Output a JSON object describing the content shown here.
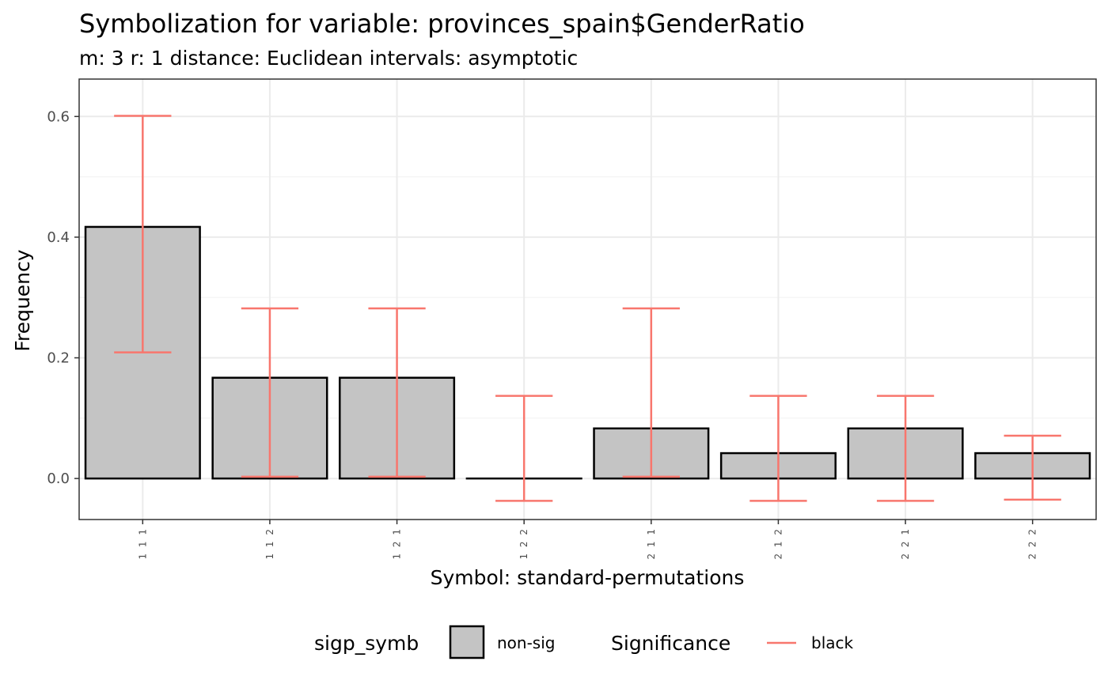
{
  "chart_data": {
    "type": "bar",
    "title": "Symbolization for variable: provinces_spain$GenderRatio",
    "subtitle": "m: 3  r:  1  distance:  Euclidean  intervals:  asymptotic",
    "xlabel": "Symbol: standard-permutations",
    "ylabel": "Frequency",
    "categories": [
      "1 1 1",
      "1 1 2",
      "1 2 1",
      "1 2 2",
      "2 1 1",
      "2 1 2",
      "2 2 1",
      "2 2 2"
    ],
    "values": [
      0.417,
      0.167,
      0.167,
      0.0,
      0.083,
      0.042,
      0.083,
      0.042
    ],
    "error_lower": [
      0.209,
      0.003,
      0.003,
      -0.037,
      0.003,
      -0.037,
      -0.037,
      -0.035
    ],
    "error_upper": [
      0.601,
      0.282,
      0.282,
      0.137,
      0.282,
      0.137,
      0.137,
      0.071
    ],
    "ylim": [
      -0.068,
      0.662
    ],
    "yticks": [
      0.0,
      0.2,
      0.4,
      0.6
    ],
    "ytick_labels": [
      "0.0",
      "0.2",
      "0.4",
      "0.6"
    ],
    "grid": true,
    "legend_position": "bottom",
    "legend": {
      "fill_title": "sigp_symb",
      "fill_label": "non-sig",
      "line_title": "Significance",
      "line_label": "black"
    },
    "colors": {
      "bar_fill": "#c4c4c4",
      "bar_stroke": "#000000",
      "error_bar": "#f8766d",
      "grid_major": "#ebebeb",
      "grid_minor": "#f4f4f4",
      "panel_border": "#333333"
    }
  }
}
